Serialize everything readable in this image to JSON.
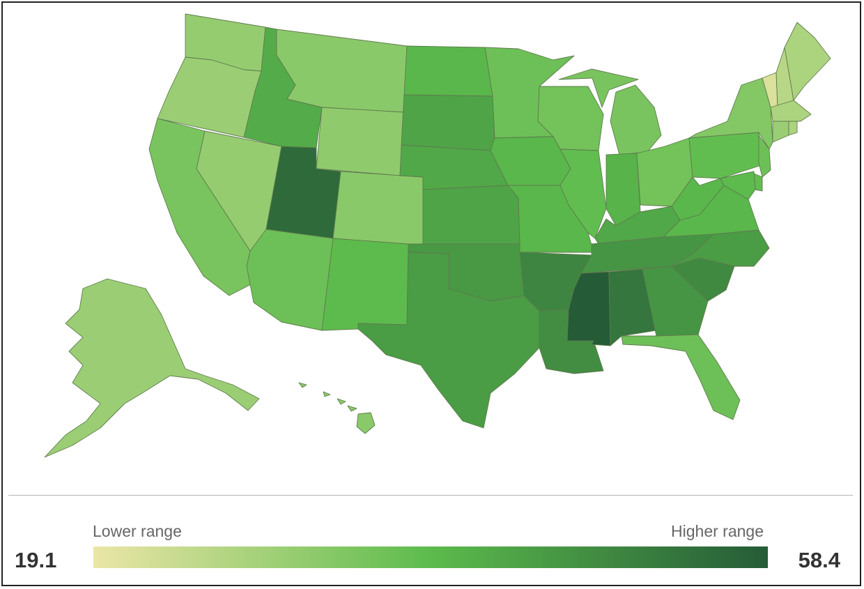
{
  "legend": {
    "lower_label": "Lower range",
    "higher_label": "Higher range",
    "min_value": "19.1",
    "max_value": "58.4",
    "color_low": "#ebe6a6",
    "color_mid": "#5cbb4c",
    "color_high": "#255b37"
  },
  "map": {
    "states": [
      {
        "id": "WA",
        "level": 0.3
      },
      {
        "id": "OR",
        "level": 0.28
      },
      {
        "id": "CA",
        "level": 0.4
      },
      {
        "id": "NV",
        "level": 0.3
      },
      {
        "id": "ID",
        "level": 0.58
      },
      {
        "id": "MT",
        "level": 0.34
      },
      {
        "id": "WY",
        "level": 0.32
      },
      {
        "id": "UT",
        "level": 0.92
      },
      {
        "id": "AZ",
        "level": 0.44
      },
      {
        "id": "CO",
        "level": 0.34
      },
      {
        "id": "NM",
        "level": 0.5
      },
      {
        "id": "ND",
        "level": 0.52
      },
      {
        "id": "SD",
        "level": 0.62
      },
      {
        "id": "NE",
        "level": 0.6
      },
      {
        "id": "KS",
        "level": 0.62
      },
      {
        "id": "OK",
        "level": 0.68
      },
      {
        "id": "TX",
        "level": 0.66
      },
      {
        "id": "MN",
        "level": 0.44
      },
      {
        "id": "IA",
        "level": 0.52
      },
      {
        "id": "MO",
        "level": 0.52
      },
      {
        "id": "AR",
        "level": 0.78
      },
      {
        "id": "LA",
        "level": 0.74
      },
      {
        "id": "WI",
        "level": 0.42
      },
      {
        "id": "IL",
        "level": 0.48
      },
      {
        "id": "MI",
        "level": 0.4
      },
      {
        "id": "IN",
        "level": 0.54
      },
      {
        "id": "OH",
        "level": 0.42
      },
      {
        "id": "KY",
        "level": 0.6
      },
      {
        "id": "TN",
        "level": 0.7
      },
      {
        "id": "MS",
        "level": 1.0
      },
      {
        "id": "AL",
        "level": 0.86
      },
      {
        "id": "GA",
        "level": 0.7
      },
      {
        "id": "FL",
        "level": 0.44
      },
      {
        "id": "SC",
        "level": 0.76
      },
      {
        "id": "NC",
        "level": 0.66
      },
      {
        "id": "VA",
        "level": 0.52
      },
      {
        "id": "WV",
        "level": 0.52
      },
      {
        "id": "PA",
        "level": 0.48
      },
      {
        "id": "NY",
        "level": 0.36
      },
      {
        "id": "VT",
        "level": 0.06
      },
      {
        "id": "NH",
        "level": 0.18
      },
      {
        "id": "ME",
        "level": 0.22
      },
      {
        "id": "MA",
        "level": 0.22
      },
      {
        "id": "CT",
        "level": 0.28
      },
      {
        "id": "RI",
        "level": 0.22
      },
      {
        "id": "NJ",
        "level": 0.44
      },
      {
        "id": "DE",
        "level": 0.48
      },
      {
        "id": "MD",
        "level": 0.5
      },
      {
        "id": "AK",
        "level": 0.28
      },
      {
        "id": "HI",
        "level": 0.34
      }
    ]
  }
}
